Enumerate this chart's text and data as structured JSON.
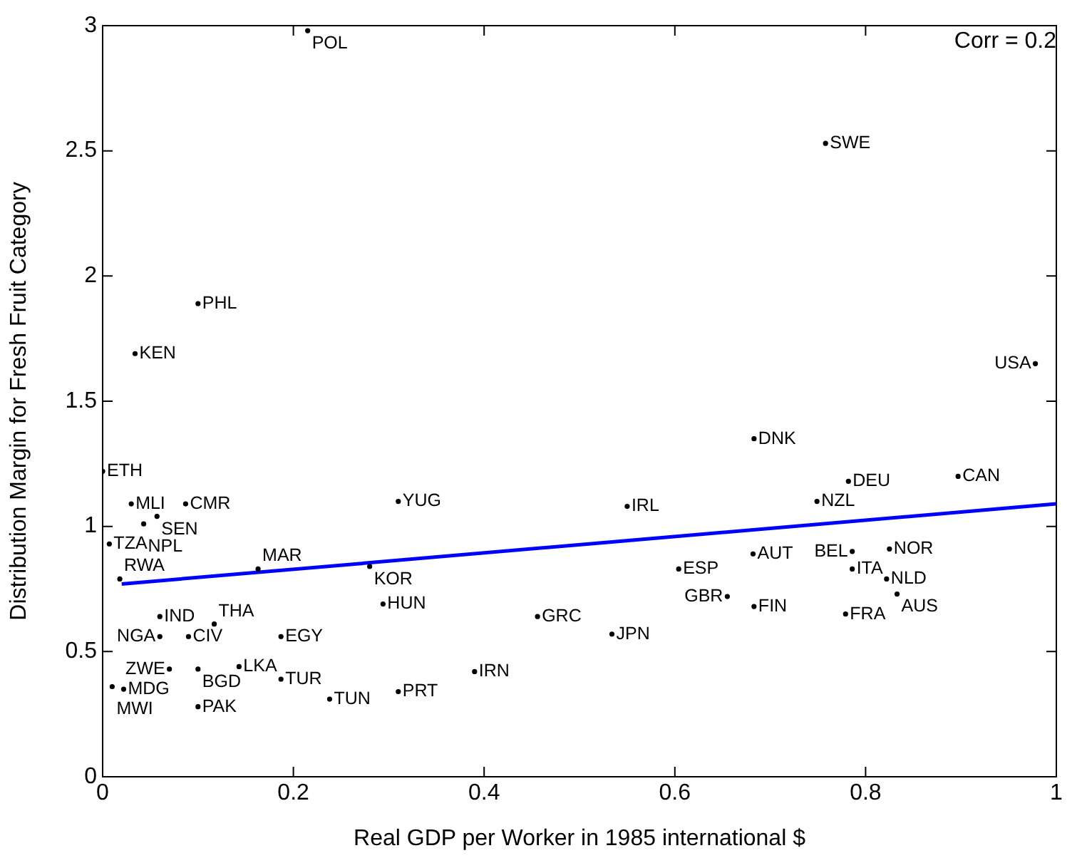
{
  "chart_data": {
    "type": "scatter",
    "xlabel": "Real GDP per Worker in 1985 international $",
    "ylabel": "Distribution Margin for Fresh Fruit Category",
    "annotations": [
      "Corr = 0.2"
    ],
    "xlim": [
      0,
      1
    ],
    "ylim": [
      0,
      3
    ],
    "xticks": [
      0,
      0.2,
      0.4,
      0.6,
      0.8,
      1
    ],
    "yticks": [
      0,
      0.5,
      1,
      1.5,
      2,
      2.5,
      3
    ],
    "grid": false,
    "legend": false,
    "series": [
      {
        "color": "#000000",
        "marker": "circle",
        "x": [
          0.0,
          0.03,
          0.057,
          0.043,
          0.087,
          0.007,
          0.018,
          0.163,
          0.28,
          0.06,
          0.06,
          0.09,
          0.117,
          0.187,
          0.07,
          0.1,
          0.143,
          0.187,
          0.238,
          0.1,
          0.01,
          0.022,
          0.31,
          0.31,
          0.55,
          0.294,
          0.456,
          0.534,
          0.39,
          0.604,
          0.682,
          0.655,
          0.683,
          0.749,
          0.782,
          0.897,
          0.786,
          0.825,
          0.786,
          0.822,
          0.833,
          0.779,
          0.215,
          0.758,
          0.1,
          0.034,
          0.978,
          0.683
        ],
        "values": [
          1.22,
          1.09,
          1.04,
          1.01,
          1.09,
          0.93,
          0.79,
          0.83,
          0.84,
          0.64,
          0.56,
          0.56,
          0.61,
          0.56,
          0.43,
          0.43,
          0.44,
          0.39,
          0.31,
          0.28,
          0.36,
          0.35,
          0.34,
          1.1,
          1.08,
          0.69,
          0.64,
          0.57,
          0.42,
          0.83,
          0.89,
          0.72,
          0.68,
          1.1,
          1.18,
          1.2,
          0.9,
          0.91,
          0.83,
          0.79,
          0.73,
          0.65,
          2.98,
          2.53,
          1.89,
          1.69,
          1.65,
          1.35
        ],
        "value_labels": [
          "ETH",
          "MLI",
          "SEN",
          "NPL",
          "CMR",
          "TZA",
          "RWA",
          "MAR",
          "KOR",
          "IND",
          "NGA",
          "CIV",
          "THA",
          "EGY",
          "ZWE",
          "BGD",
          "LKA",
          "TUR",
          "TUN",
          "PAK",
          "MWI",
          "MDG",
          "PRT",
          "YUG",
          "IRL",
          "HUN",
          "GRC",
          "JPN",
          "IRN",
          "ESP",
          "AUT",
          "GBR",
          "FIN",
          "NZL",
          "DEU",
          "CAN",
          "BEL",
          "NOR",
          "ITA",
          "NLD",
          "AUS",
          "FRA",
          "POL",
          "SWE",
          "PHL",
          "KEN",
          "USA",
          "DNK"
        ]
      },
      {
        "type": "line",
        "color": "#0000ff",
        "x": [
          0.02,
          1
        ],
        "values": [
          0.77,
          1.09
        ]
      }
    ]
  }
}
